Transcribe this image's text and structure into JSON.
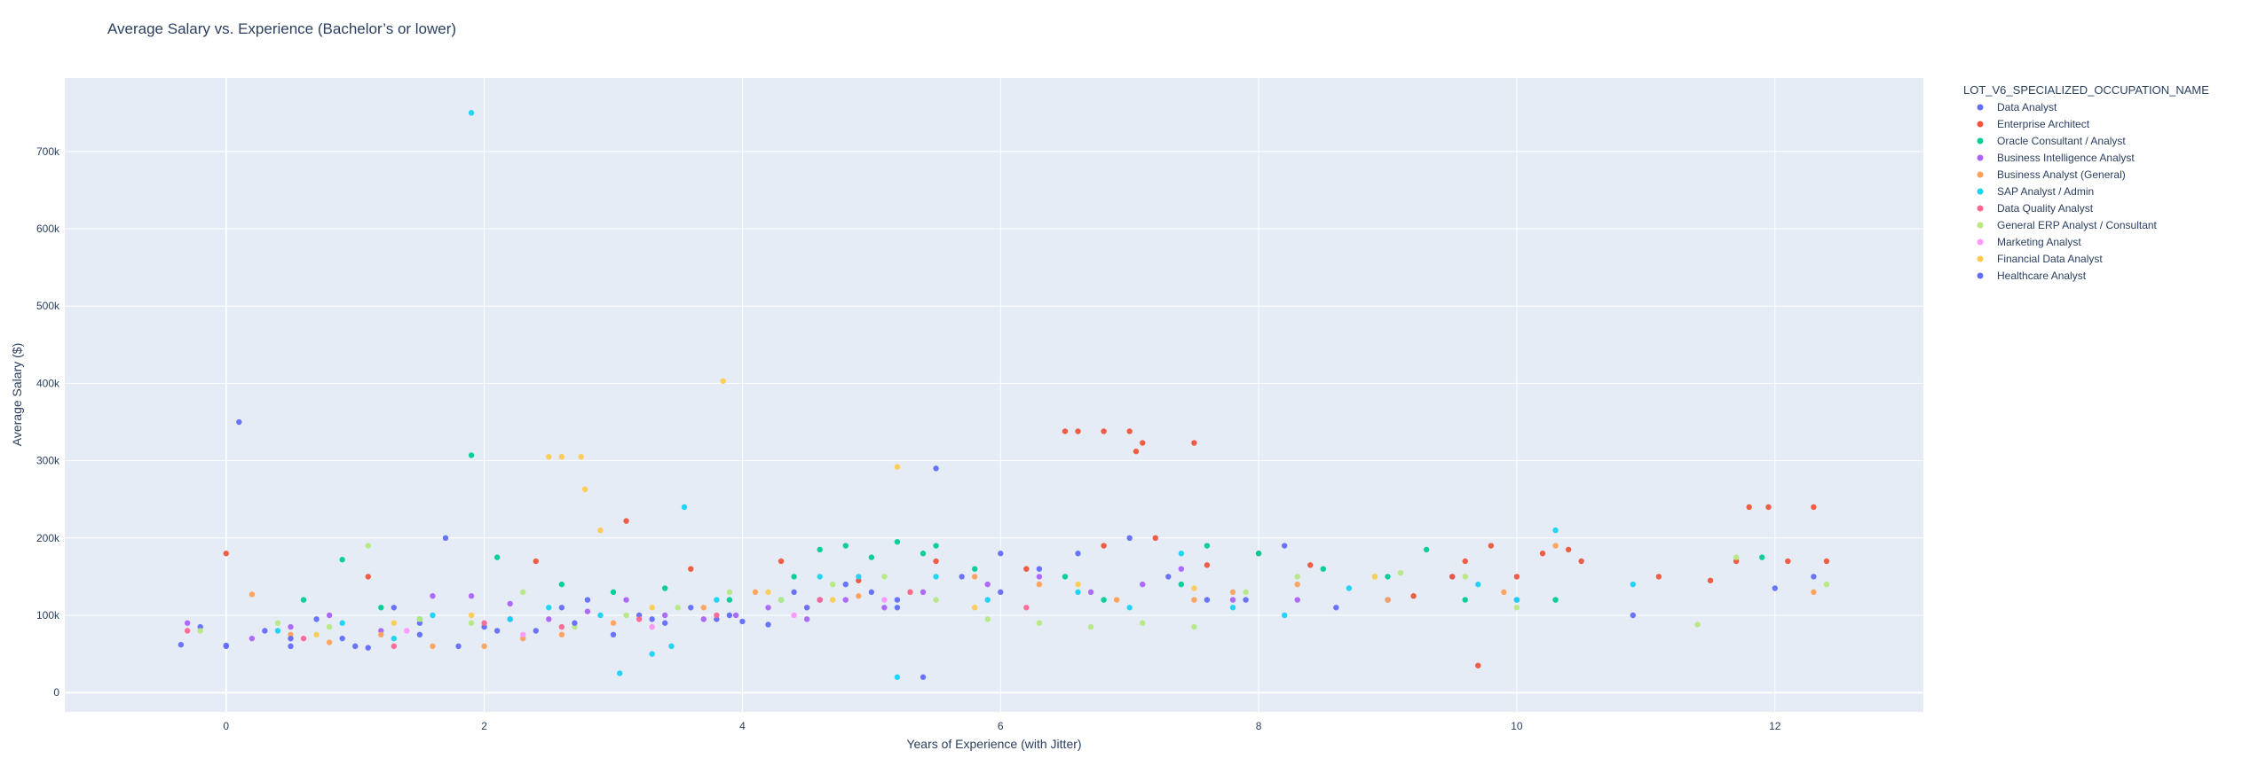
{
  "chart_data": {
    "type": "scatter",
    "title": "Average Salary vs. Experience (Bachelor’s or lower)",
    "xlabel": "Years of Experience (with Jitter)",
    "ylabel": "Average Salary ($)",
    "xlim": [
      -1.25,
      13.15
    ],
    "ylim": [
      -25000,
      795000
    ],
    "x_ticks": [
      0,
      2,
      4,
      6,
      8,
      10,
      12
    ],
    "x_tick_labels": [
      "0",
      "2",
      "4",
      "6",
      "8",
      "10",
      "12"
    ],
    "y_ticks": [
      0,
      100000,
      200000,
      300000,
      400000,
      500000,
      600000,
      700000
    ],
    "y_tick_labels": [
      "0",
      "100k",
      "200k",
      "300k",
      "400k",
      "500k",
      "600k",
      "700k"
    ],
    "grid": true,
    "legend": {
      "title": "LOT_V6_SPECIALIZED_OCCUPATION_NAME",
      "placement": "right"
    },
    "series": [
      {
        "name": "Data Analyst",
        "color": "#636efa",
        "points": [
          [
            -0.35,
            62000
          ],
          [
            -0.2,
            85000
          ],
          [
            0,
            61000
          ],
          [
            0.1,
            350000
          ],
          [
            0.3,
            80000
          ],
          [
            0.5,
            60000
          ],
          [
            0.7,
            95000
          ],
          [
            0.9,
            70000
          ],
          [
            1.1,
            58000
          ],
          [
            1.3,
            110000
          ],
          [
            1.5,
            90000
          ],
          [
            1.7,
            200000
          ],
          [
            1.8,
            60000
          ],
          [
            2.0,
            85000
          ],
          [
            2.2,
            95000
          ],
          [
            2.4,
            80000
          ],
          [
            2.6,
            110000
          ],
          [
            2.8,
            120000
          ],
          [
            3.0,
            75000
          ],
          [
            3.2,
            100000
          ],
          [
            3.4,
            90000
          ],
          [
            3.6,
            110000
          ],
          [
            3.8,
            95000
          ],
          [
            4.0,
            92000
          ],
          [
            4.2,
            88000
          ],
          [
            4.4,
            130000
          ],
          [
            4.6,
            120000
          ],
          [
            4.8,
            140000
          ],
          [
            5.0,
            130000
          ],
          [
            5.2,
            110000
          ],
          [
            5.4,
            20000
          ],
          [
            5.5,
            290000
          ],
          [
            5.7,
            150000
          ],
          [
            6.0,
            180000
          ],
          [
            6.3,
            160000
          ],
          [
            6.6,
            180000
          ],
          [
            7.0,
            200000
          ],
          [
            7.3,
            150000
          ],
          [
            7.6,
            120000
          ],
          [
            7.9,
            120000
          ],
          [
            8.2,
            190000
          ],
          [
            8.6,
            110000
          ],
          [
            9.0,
            120000
          ],
          [
            9.5,
            150000
          ],
          [
            10.0,
            120000
          ],
          [
            10.9,
            100000
          ],
          [
            12.0,
            135000
          ],
          [
            12.3,
            150000
          ]
        ]
      },
      {
        "name": "Enterprise Architect",
        "color": "#ef553b",
        "points": [
          [
            0.0,
            180000
          ],
          [
            1.1,
            150000
          ],
          [
            2.4,
            170000
          ],
          [
            3.1,
            222000
          ],
          [
            3.6,
            160000
          ],
          [
            4.3,
            170000
          ],
          [
            4.9,
            145000
          ],
          [
            5.5,
            170000
          ],
          [
            6.2,
            160000
          ],
          [
            6.5,
            338000
          ],
          [
            6.6,
            338000
          ],
          [
            6.8,
            338000
          ],
          [
            7.0,
            338000
          ],
          [
            7.05,
            312000
          ],
          [
            7.1,
            323000
          ],
          [
            7.5,
            323000
          ],
          [
            6.8,
            190000
          ],
          [
            7.2,
            200000
          ],
          [
            7.6,
            165000
          ],
          [
            8.0,
            180000
          ],
          [
            8.4,
            165000
          ],
          [
            9.2,
            125000
          ],
          [
            9.5,
            150000
          ],
          [
            9.6,
            170000
          ],
          [
            9.7,
            35000
          ],
          [
            9.8,
            190000
          ],
          [
            10.0,
            150000
          ],
          [
            10.2,
            180000
          ],
          [
            10.4,
            185000
          ],
          [
            10.5,
            170000
          ],
          [
            11.1,
            150000
          ],
          [
            11.5,
            145000
          ],
          [
            11.7,
            170000
          ],
          [
            11.8,
            240000
          ],
          [
            11.95,
            240000
          ],
          [
            12.1,
            170000
          ],
          [
            12.3,
            240000
          ],
          [
            12.4,
            170000
          ]
        ]
      },
      {
        "name": "Oracle Consultant / Analyst",
        "color": "#00cc96",
        "points": [
          [
            0.6,
            120000
          ],
          [
            0.9,
            172000
          ],
          [
            1.2,
            110000
          ],
          [
            1.5,
            95000
          ],
          [
            1.9,
            307000
          ],
          [
            2.1,
            175000
          ],
          [
            2.6,
            140000
          ],
          [
            3.0,
            130000
          ],
          [
            3.4,
            135000
          ],
          [
            3.9,
            120000
          ],
          [
            4.4,
            150000
          ],
          [
            4.6,
            185000
          ],
          [
            4.8,
            190000
          ],
          [
            5.0,
            175000
          ],
          [
            5.2,
            195000
          ],
          [
            5.4,
            180000
          ],
          [
            5.5,
            190000
          ],
          [
            5.8,
            160000
          ],
          [
            6.5,
            150000
          ],
          [
            6.8,
            120000
          ],
          [
            7.4,
            140000
          ],
          [
            7.6,
            190000
          ],
          [
            8.0,
            180000
          ],
          [
            8.5,
            160000
          ],
          [
            9.0,
            150000
          ],
          [
            9.3,
            185000
          ],
          [
            9.6,
            120000
          ],
          [
            10.3,
            120000
          ],
          [
            11.9,
            175000
          ]
        ]
      },
      {
        "name": "Business Intelligence Analyst",
        "color": "#ab63fa",
        "points": [
          [
            -0.3,
            90000
          ],
          [
            0.2,
            70000
          ],
          [
            0.5,
            85000
          ],
          [
            0.8,
            100000
          ],
          [
            1.2,
            80000
          ],
          [
            1.6,
            125000
          ],
          [
            1.9,
            125000
          ],
          [
            2.2,
            115000
          ],
          [
            2.5,
            95000
          ],
          [
            2.8,
            105000
          ],
          [
            3.1,
            120000
          ],
          [
            3.4,
            100000
          ],
          [
            3.7,
            95000
          ],
          [
            3.95,
            100000
          ],
          [
            4.2,
            110000
          ],
          [
            4.5,
            95000
          ],
          [
            4.8,
            120000
          ],
          [
            5.1,
            110000
          ],
          [
            5.4,
            130000
          ],
          [
            5.9,
            140000
          ],
          [
            6.3,
            150000
          ],
          [
            6.7,
            130000
          ],
          [
            7.1,
            140000
          ],
          [
            7.4,
            160000
          ],
          [
            7.8,
            120000
          ],
          [
            8.3,
            120000
          ]
        ]
      },
      {
        "name": "Business Analyst (General)",
        "color": "#ffa15a",
        "points": [
          [
            0.2,
            127000
          ],
          [
            0.5,
            75000
          ],
          [
            0.8,
            65000
          ],
          [
            1.2,
            75000
          ],
          [
            1.6,
            60000
          ],
          [
            2.0,
            60000
          ],
          [
            2.3,
            70000
          ],
          [
            2.6,
            75000
          ],
          [
            3.0,
            90000
          ],
          [
            3.3,
            85000
          ],
          [
            3.7,
            110000
          ],
          [
            4.1,
            130000
          ],
          [
            4.5,
            110000
          ],
          [
            4.9,
            125000
          ],
          [
            5.3,
            130000
          ],
          [
            5.8,
            150000
          ],
          [
            6.3,
            140000
          ],
          [
            6.9,
            120000
          ],
          [
            7.5,
            120000
          ],
          [
            7.8,
            130000
          ],
          [
            8.3,
            140000
          ],
          [
            9.0,
            120000
          ],
          [
            9.9,
            130000
          ],
          [
            10.3,
            190000
          ],
          [
            12.3,
            130000
          ]
        ]
      },
      {
        "name": "SAP Analyst / Admin",
        "color": "#19d3f3",
        "points": [
          [
            0.4,
            80000
          ],
          [
            0.9,
            90000
          ],
          [
            1.3,
            70000
          ],
          [
            1.6,
            100000
          ],
          [
            1.9,
            750000
          ],
          [
            2.2,
            95000
          ],
          [
            2.5,
            110000
          ],
          [
            2.9,
            100000
          ],
          [
            3.05,
            25000
          ],
          [
            3.3,
            50000
          ],
          [
            3.45,
            60000
          ],
          [
            3.55,
            240000
          ],
          [
            3.8,
            120000
          ],
          [
            4.3,
            120000
          ],
          [
            4.6,
            150000
          ],
          [
            4.9,
            150000
          ],
          [
            5.2,
            20000
          ],
          [
            5.5,
            150000
          ],
          [
            5.9,
            120000
          ],
          [
            6.6,
            130000
          ],
          [
            7.0,
            110000
          ],
          [
            7.4,
            180000
          ],
          [
            7.8,
            110000
          ],
          [
            8.2,
            100000
          ],
          [
            8.7,
            135000
          ],
          [
            9.7,
            140000
          ],
          [
            10.0,
            120000
          ],
          [
            10.3,
            210000
          ],
          [
            10.9,
            140000
          ]
        ]
      },
      {
        "name": "Data Quality Analyst",
        "color": "#ff6692",
        "points": [
          [
            -0.3,
            80000
          ],
          [
            0.6,
            70000
          ],
          [
            1.3,
            60000
          ],
          [
            2.0,
            90000
          ],
          [
            2.6,
            85000
          ],
          [
            3.2,
            95000
          ],
          [
            3.8,
            100000
          ],
          [
            4.6,
            120000
          ],
          [
            5.3,
            130000
          ],
          [
            6.2,
            110000
          ]
        ]
      },
      {
        "name": "General ERP Analyst / Consultant",
        "color": "#b6e880",
        "points": [
          [
            -0.2,
            80000
          ],
          [
            0.4,
            90000
          ],
          [
            0.8,
            85000
          ],
          [
            1.1,
            190000
          ],
          [
            1.5,
            95000
          ],
          [
            1.9,
            90000
          ],
          [
            2.3,
            130000
          ],
          [
            2.7,
            85000
          ],
          [
            3.1,
            100000
          ],
          [
            3.5,
            110000
          ],
          [
            3.9,
            130000
          ],
          [
            4.3,
            120000
          ],
          [
            4.7,
            140000
          ],
          [
            5.1,
            150000
          ],
          [
            5.5,
            120000
          ],
          [
            5.9,
            95000
          ],
          [
            6.3,
            90000
          ],
          [
            6.7,
            85000
          ],
          [
            7.1,
            90000
          ],
          [
            7.5,
            85000
          ],
          [
            7.9,
            130000
          ],
          [
            8.3,
            150000
          ],
          [
            8.9,
            150000
          ],
          [
            9.1,
            155000
          ],
          [
            9.6,
            150000
          ],
          [
            10.0,
            110000
          ],
          [
            11.4,
            88000
          ],
          [
            11.7,
            175000
          ],
          [
            12.4,
            140000
          ]
        ]
      },
      {
        "name": "Marketing Analyst",
        "color": "#ff97ff",
        "points": [
          [
            0.5,
            70000
          ],
          [
            1.4,
            80000
          ],
          [
            2.3,
            75000
          ],
          [
            3.3,
            85000
          ],
          [
            4.4,
            100000
          ],
          [
            5.1,
            120000
          ]
        ]
      },
      {
        "name": "Financial Data Analyst",
        "color": "#fecb52",
        "points": [
          [
            0.7,
            75000
          ],
          [
            1.3,
            90000
          ],
          [
            1.9,
            100000
          ],
          [
            2.5,
            305000
          ],
          [
            2.6,
            305000
          ],
          [
            2.75,
            305000
          ],
          [
            2.78,
            263000
          ],
          [
            2.9,
            210000
          ],
          [
            3.3,
            110000
          ],
          [
            3.85,
            403000
          ],
          [
            4.2,
            130000
          ],
          [
            4.7,
            120000
          ],
          [
            5.2,
            292000
          ],
          [
            5.8,
            110000
          ],
          [
            6.6,
            140000
          ],
          [
            7.5,
            135000
          ],
          [
            8.9,
            150000
          ]
        ]
      },
      {
        "name": "Healthcare Analyst",
        "color": "#636efa",
        "points": [
          [
            0.0,
            60000
          ],
          [
            0.5,
            70000
          ],
          [
            1.0,
            60000
          ],
          [
            1.5,
            75000
          ],
          [
            2.1,
            80000
          ],
          [
            2.7,
            90000
          ],
          [
            3.3,
            95000
          ],
          [
            3.9,
            100000
          ],
          [
            4.5,
            110000
          ],
          [
            5.2,
            120000
          ],
          [
            6.0,
            130000
          ]
        ]
      }
    ]
  }
}
